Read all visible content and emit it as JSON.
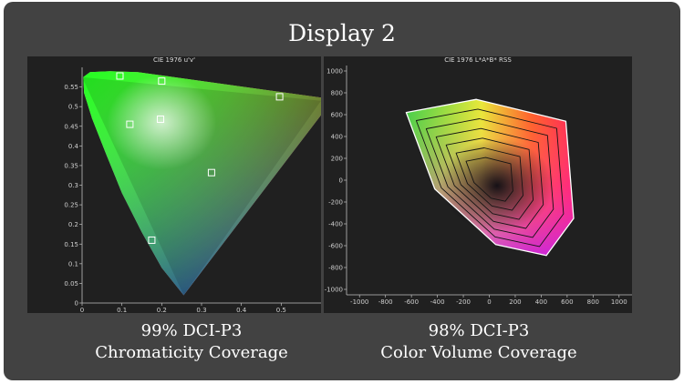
{
  "title": "Display 2",
  "left_caption": {
    "line1": "99% DCI-P3",
    "line2": "Chromaticity Coverage"
  },
  "right_caption": {
    "line1": "98% DCI-P3",
    "line2": "Color Volume Coverage"
  },
  "colors": {
    "card": "#424242",
    "plot_bg": "#202020",
    "text": "#ffffff"
  },
  "chart_data": [
    {
      "type": "scatter",
      "title": "CIE 1976 u'v'",
      "xlabel": "",
      "ylabel": "",
      "xlim": [
        0,
        0.6
      ],
      "ylim": [
        0,
        0.6
      ],
      "x_ticks": [
        "0",
        "0.1",
        "0.2",
        "0.3",
        "0.4",
        "0.5"
      ],
      "y_ticks": [
        "0",
        "0.05",
        "0.1",
        "0.15",
        "0.2",
        "0.25",
        "0.3",
        "0.35",
        "0.4",
        "0.45",
        "0.5",
        "0.55"
      ],
      "grid": false,
      "gamut_triangle": [
        {
          "x": 0.0,
          "y": 0.575
        },
        {
          "x": 0.6,
          "y": 0.515
        },
        {
          "x": 0.255,
          "y": 0.02
        }
      ],
      "markers": [
        {
          "x": 0.095,
          "y": 0.578
        },
        {
          "x": 0.2,
          "y": 0.565
        },
        {
          "x": 0.496,
          "y": 0.525
        },
        {
          "x": 0.12,
          "y": 0.455
        },
        {
          "x": 0.197,
          "y": 0.468
        },
        {
          "x": 0.325,
          "y": 0.332
        },
        {
          "x": 0.175,
          "y": 0.16
        }
      ]
    },
    {
      "type": "area",
      "title": "CIE 1976 L*A*B* RSS",
      "xlabel": "",
      "ylabel": "",
      "xlim": [
        -1100,
        1100
      ],
      "ylim": [
        -1050,
        1050
      ],
      "x_ticks": [
        "-1000",
        "-800",
        "-600",
        "-400",
        "-200",
        "0",
        "200",
        "400",
        "600",
        "800",
        "1000"
      ],
      "y_ticks": [
        "1000",
        "800",
        "600",
        "400",
        "200",
        "0",
        "-200",
        "-400",
        "-600",
        "-800",
        "-1000"
      ],
      "grid": false,
      "outer_outline": [
        {
          "x": -640,
          "y": 620
        },
        {
          "x": -100,
          "y": 740
        },
        {
          "x": 590,
          "y": 540
        },
        {
          "x": 650,
          "y": -350
        },
        {
          "x": 440,
          "y": -690
        },
        {
          "x": 50,
          "y": -590
        },
        {
          "x": -420,
          "y": -80
        }
      ]
    }
  ]
}
